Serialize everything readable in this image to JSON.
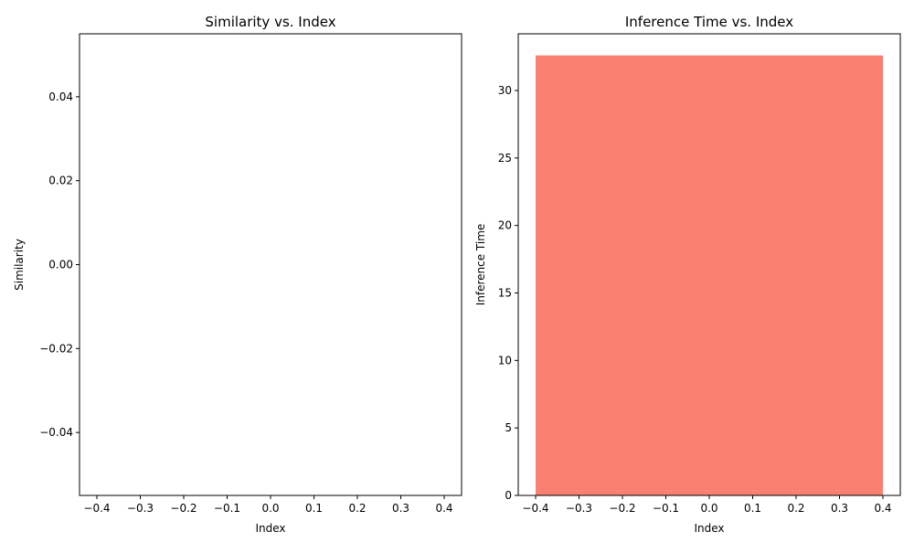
{
  "chart_data": [
    {
      "type": "bar",
      "title": "Similarity vs. Index",
      "xlabel": "Index",
      "ylabel": "Similarity",
      "x": [
        0
      ],
      "values": [
        0
      ],
      "xlim": [
        -0.44,
        0.44
      ],
      "ylim": [
        -0.055,
        0.055
      ],
      "xticks": [
        -0.4,
        -0.3,
        -0.2,
        -0.1,
        0.0,
        0.1,
        0.2,
        0.3,
        0.4
      ],
      "xtick_labels": [
        "−0.4",
        "−0.3",
        "−0.2",
        "−0.1",
        "0.0",
        "0.1",
        "0.2",
        "0.3",
        "0.4"
      ],
      "yticks": [
        -0.04,
        -0.02,
        0.0,
        0.02,
        0.04
      ],
      "ytick_labels": [
        "−0.04",
        "−0.02",
        "0.00",
        "0.02",
        "0.04"
      ],
      "bar_width": 0.8,
      "color": "#87ceeb",
      "grid": false,
      "legend": "none"
    },
    {
      "type": "bar",
      "title": "Inference Time vs. Index",
      "xlabel": "Index",
      "ylabel": "Inference Time",
      "x": [
        0
      ],
      "values": [
        32.6
      ],
      "xlim": [
        -0.44,
        0.44
      ],
      "ylim": [
        0,
        34.2
      ],
      "xticks": [
        -0.4,
        -0.3,
        -0.2,
        -0.1,
        0.0,
        0.1,
        0.2,
        0.3,
        0.4
      ],
      "xtick_labels": [
        "−0.4",
        "−0.3",
        "−0.2",
        "−0.1",
        "0.0",
        "0.1",
        "0.2",
        "0.3",
        "0.4"
      ],
      "yticks": [
        0,
        5,
        10,
        15,
        20,
        25,
        30
      ],
      "ytick_labels": [
        "0",
        "5",
        "10",
        "15",
        "20",
        "25",
        "30"
      ],
      "bar_width": 0.8,
      "color": "#fa8072",
      "grid": false,
      "legend": "none"
    }
  ]
}
